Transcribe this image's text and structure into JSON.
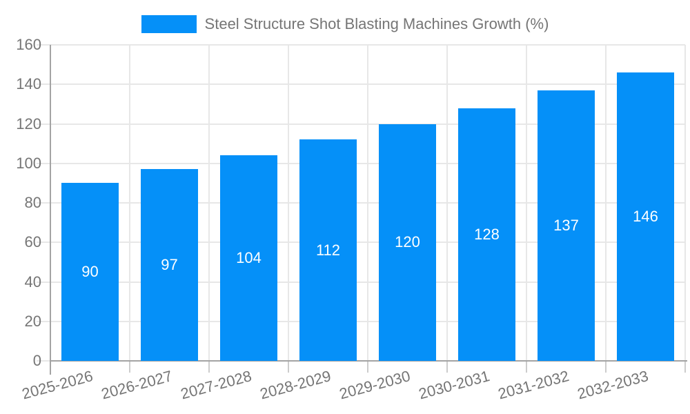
{
  "legend": {
    "label": "Steel Structure Shot Blasting Machines Growth (%)"
  },
  "chart_data": {
    "type": "bar",
    "title": "Steel Structure Shot Blasting Machines Growth (%)",
    "series_name": "Steel Structure Shot Blasting Machines Growth (%)",
    "categories": [
      "2025-2026",
      "2026-2027",
      "2027-2028",
      "2028-2029",
      "2029-2030",
      "2030-2031",
      "2031-2032",
      "2032-2033"
    ],
    "values": [
      90,
      97,
      104,
      112,
      120,
      128,
      137,
      146
    ],
    "xlabel": "",
    "ylabel": "",
    "ylim": [
      0,
      160
    ],
    "yticks": [
      0,
      20,
      40,
      60,
      80,
      100,
      120,
      140,
      160
    ],
    "grid": true,
    "legend_position": "top",
    "bar_labels_shown": true,
    "colors": {
      "bar": "#0590f8",
      "bar_label": "#ffffff",
      "axis_text": "#757575",
      "axis_line": "#a3a3a3",
      "gridline": "#e7e7e7",
      "tick": "#cccccc",
      "background": "#ffffff"
    }
  }
}
